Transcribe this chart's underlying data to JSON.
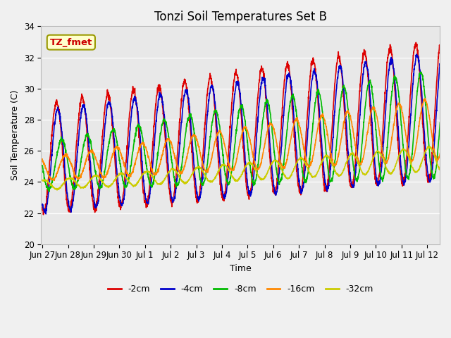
{
  "title": "Tonzi Soil Temperatures Set B",
  "xlabel": "Time",
  "ylabel": "Soil Temperature (C)",
  "ylim": [
    20,
    34
  ],
  "series_labels": [
    "-2cm",
    "-4cm",
    "-8cm",
    "-16cm",
    "-32cm"
  ],
  "series_colors": [
    "#dd0000",
    "#0000cc",
    "#00bb00",
    "#ff8800",
    "#cccc00"
  ],
  "annotation_text": "TZ_fmet",
  "annotation_bg": "#ffffcc",
  "annotation_border": "#999900",
  "plot_bg": "#e8e8e8",
  "fig_bg": "#f0f0f0",
  "grid_color": "#ffffff",
  "tick_labels": [
    "Jun 27",
    "Jun 28",
    "Jun 29",
    "Jun 30",
    "Jul 1",
    "Jul 2",
    "Jul 3",
    "Jul 4",
    "Jul 5",
    "Jul 6",
    "Jul 7",
    "Jul 8",
    "Jul 9",
    "Jul 10",
    "Jul 11",
    "Jul 12"
  ],
  "tick_positions": [
    0,
    1,
    2,
    3,
    4,
    5,
    6,
    7,
    8,
    9,
    10,
    11,
    12,
    13,
    14,
    15
  ],
  "yticks": [
    20,
    22,
    24,
    26,
    28,
    30,
    32,
    34
  ],
  "title_fontsize": 12,
  "axis_label_fontsize": 9,
  "tick_fontsize": 8.5,
  "legend_fontsize": 9,
  "linewidth": 1.2
}
